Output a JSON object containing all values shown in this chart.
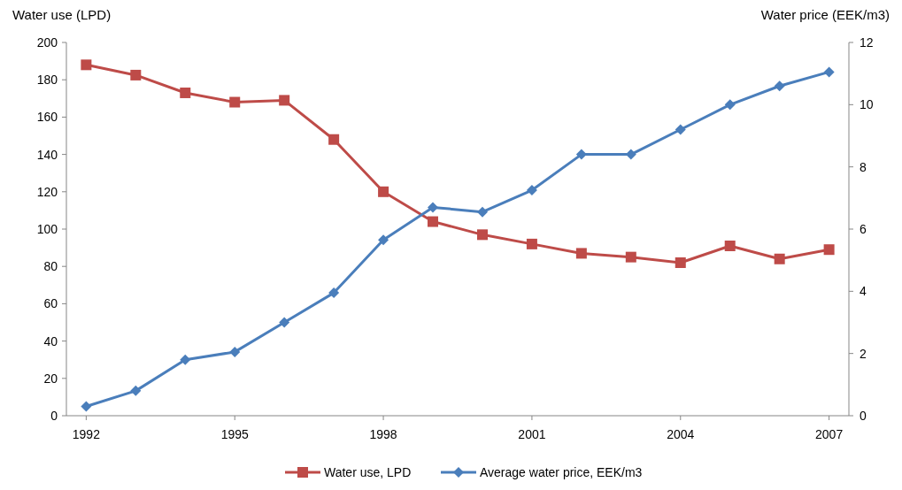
{
  "chart_data": {
    "type": "line",
    "ylabel": "Water use (LPD)",
    "y2label": "Water price (EEK/m3)",
    "x": [
      1992,
      1993,
      1994,
      1995,
      1996,
      1997,
      1998,
      1999,
      2000,
      2001,
      2002,
      2003,
      2004,
      2005,
      2006,
      2007
    ],
    "xlim": [
      1991.6,
      2007.4
    ],
    "xticks": [
      1992,
      1995,
      1998,
      2001,
      2004,
      2007
    ],
    "ylim": [
      0,
      200
    ],
    "yticks": [
      0,
      20,
      40,
      60,
      80,
      100,
      120,
      140,
      160,
      180,
      200
    ],
    "y2lim": [
      0,
      12
    ],
    "y2ticks": [
      0,
      2,
      4,
      6,
      8,
      10,
      12
    ],
    "series": [
      {
        "name": "Water use, LPD",
        "color": "#be4b48",
        "marker": "square",
        "values": [
          188,
          182.5,
          173,
          168,
          169,
          148,
          120,
          104,
          97,
          92,
          87,
          85,
          82,
          91,
          84,
          89
        ]
      },
      {
        "name": "Average water price, EEK/m3",
        "color": "#4a7ebb",
        "marker": "diamond",
        "axis": "y2",
        "values": [
          0.3,
          0.8,
          1.8,
          2.05,
          3.0,
          3.95,
          5.65,
          6.7,
          6.55,
          7.25,
          8.4,
          8.4,
          9.2,
          10,
          10.6,
          11.05
        ]
      }
    ],
    "legend": "bottom",
    "grid": false
  }
}
